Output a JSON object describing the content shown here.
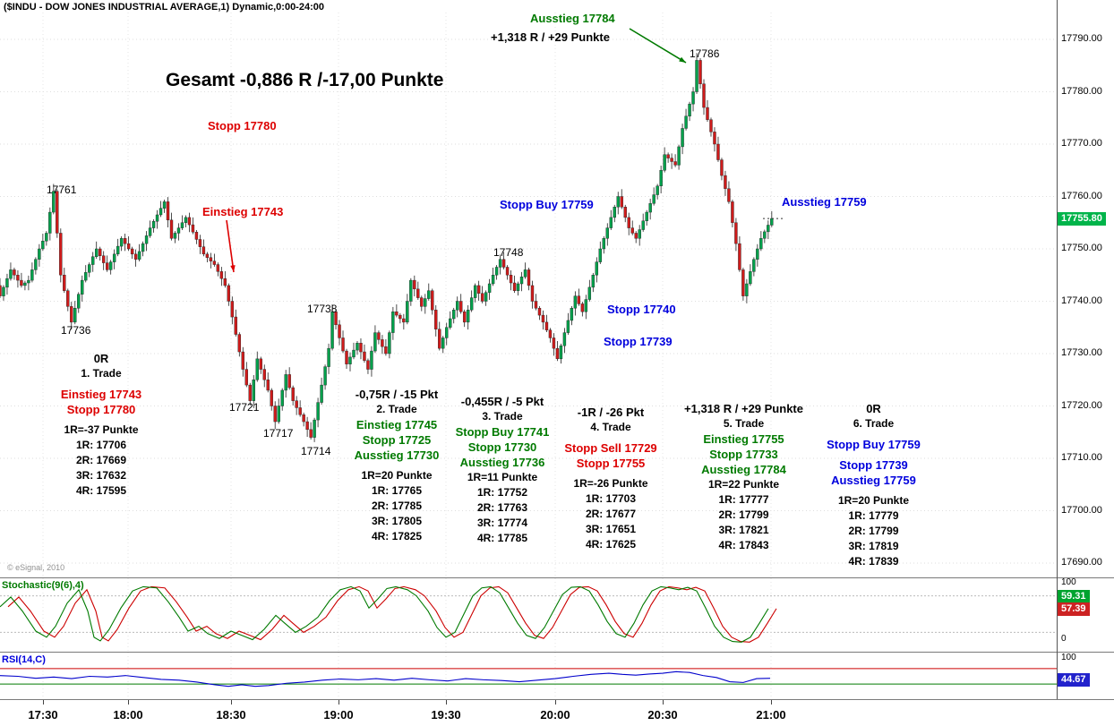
{
  "title_bar": {
    "symbol_title": "($INDU - DOW JONES INDUSTRIAL AVERAGE,1) Dynamic,0:00-24:00"
  },
  "colors": {
    "candle_up": "#00a14b",
    "candle_down": "#cf1b1b",
    "wick": "#222222",
    "price_badge_bg": "#00b44a",
    "stoch_k": "#007a00",
    "stoch_d": "#cc0000",
    "rsi_line": "#0000cc",
    "rsi_upper_band": "#cc0000",
    "rsi_lower_band": "#007a00",
    "annotation_red": "#dd0000",
    "annotation_green": "#007a00",
    "annotation_blue": "#0000dd"
  },
  "price_axis": {
    "labels": [
      "17790.00",
      "17780.00",
      "17770.00",
      "17760.00",
      "17750.00",
      "17740.00",
      "17730.00",
      "17720.00",
      "17710.00",
      "17700.00",
      "17690.00"
    ],
    "last_price_badge": "17755.80"
  },
  "annotations": {
    "gesamt": "Gesamt -0,886 R /-17,00 Punkte",
    "stopp_17780": "Stopp 17780",
    "einstieg_17743": "Einstieg 17743",
    "ausstieg_17784": "Ausstieg 17784",
    "plus_r": "+1,318 R / +29 Punkte",
    "peak_price": "17786",
    "stopp_buy_17759": "Stopp Buy 17759",
    "ausstieg_17759": "Ausstieg 17759",
    "stopp_17740": "Stopp 17740",
    "stopp_17739": "Stopp 17739",
    "copyright": "© eSignal, 2010",
    "swings": {
      "h17761": "17761",
      "l17736": "17736",
      "h17738": "17738",
      "h17748": "17748",
      "l17721": "17721",
      "l17717": "17717",
      "l17714": "17714"
    }
  },
  "trades": [
    {
      "result": "0R",
      "name": "1. Trade",
      "signals": [
        "Einstieg 17743",
        "Stopp 17780"
      ],
      "r_unit": "1R=-37 Punkte",
      "levels": [
        "1R: 17706",
        "2R: 17669",
        "3R: 17632",
        "4R: 17595"
      ]
    },
    {
      "result": "-0,75R / -15 Pkt",
      "name": "2. Trade",
      "signals": [
        "Einstieg 17745",
        "Stopp 17725",
        "Ausstieg 17730"
      ],
      "r_unit": "1R=20 Punkte",
      "levels": [
        "1R: 17765",
        "2R: 17785",
        "3R: 17805",
        "4R: 17825"
      ]
    },
    {
      "result": "-0,455R / -5 Pkt",
      "name": "3. Trade",
      "signals": [
        "Stopp Buy 17741",
        "Stopp 17730",
        "Ausstieg 17736"
      ],
      "r_unit": "1R=11 Punkte",
      "levels": [
        "1R: 17752",
        "2R: 17763",
        "3R: 17774",
        "4R: 17785"
      ]
    },
    {
      "result": "-1R / -26 Pkt",
      "name": "4. Trade",
      "signals": [
        "Stopp Sell 17729",
        "Stopp 17755"
      ],
      "r_unit": "1R=-26 Punkte",
      "levels": [
        "1R: 17703",
        "2R: 17677",
        "3R: 17651",
        "4R: 17625"
      ]
    },
    {
      "result": "+1,318 R / +29 Punkte",
      "name": "5. Trade",
      "signals": [
        "Einstieg 17755",
        "Stopp 17733",
        "Ausstieg 17784"
      ],
      "r_unit": "1R=22 Punkte",
      "levels": [
        "1R: 17777",
        "2R: 17799",
        "3R: 17821",
        "4R: 17843"
      ]
    },
    {
      "result": "0R",
      "name": "6. Trade",
      "signals": [
        "Stopp Buy 17759",
        "Stopp 17739",
        "Ausstieg 17759"
      ],
      "r_unit": "1R=20 Punkte",
      "levels": [
        "1R: 17779",
        "2R: 17799",
        "3R: 17819",
        "4R: 17839"
      ]
    }
  ],
  "chart_data": [
    {
      "type": "candlestick",
      "title": "$INDU Dow Jones Industrial Average, 1-minute",
      "x_axis": {
        "ticks": [
          "17:30",
          "18:00",
          "18:30",
          "19:00",
          "19:30",
          "20:00",
          "20:30",
          "21:00"
        ]
      },
      "y_axis": {
        "min": 17690,
        "max": 17790,
        "tick_step": 10
      },
      "last_price": 17755.8,
      "close_keypoints": [
        [
          0,
          17745
        ],
        [
          2,
          17741
        ],
        [
          5,
          17746
        ],
        [
          8,
          17743
        ],
        [
          10,
          17744
        ],
        [
          13,
          17750
        ],
        [
          15,
          17753
        ],
        [
          17,
          17761
        ],
        [
          19,
          17745
        ],
        [
          22,
          17736
        ],
        [
          25,
          17744
        ],
        [
          29,
          17750
        ],
        [
          32,
          17746
        ],
        [
          36,
          17752
        ],
        [
          40,
          17748
        ],
        [
          44,
          17754
        ],
        [
          48,
          17759
        ],
        [
          50,
          17752
        ],
        [
          54,
          17756
        ],
        [
          59,
          17749
        ],
        [
          62,
          17747
        ],
        [
          65,
          17743
        ],
        [
          67,
          17737
        ],
        [
          70,
          17727
        ],
        [
          72,
          17721
        ],
        [
          74,
          17729
        ],
        [
          77,
          17723
        ],
        [
          79,
          17717
        ],
        [
          82,
          17726
        ],
        [
          84,
          17721
        ],
        [
          87,
          17717
        ],
        [
          89,
          17714
        ],
        [
          92,
          17724
        ],
        [
          94,
          17731
        ],
        [
          95,
          17738
        ],
        [
          97,
          17733
        ],
        [
          99,
          17728
        ],
        [
          102,
          17732
        ],
        [
          105,
          17727
        ],
        [
          107,
          17734
        ],
        [
          110,
          17730
        ],
        [
          112,
          17738
        ],
        [
          115,
          17736
        ],
        [
          117,
          17744
        ],
        [
          120,
          17739
        ],
        [
          122,
          17742
        ],
        [
          125,
          17731
        ],
        [
          127,
          17735
        ],
        [
          130,
          17740
        ],
        [
          132,
          17736
        ],
        [
          135,
          17743
        ],
        [
          137,
          17740
        ],
        [
          140,
          17745
        ],
        [
          142,
          17748
        ],
        [
          146,
          17742
        ],
        [
          149,
          17746
        ],
        [
          151,
          17740
        ],
        [
          154,
          17736
        ],
        [
          156,
          17733
        ],
        [
          158,
          17729
        ],
        [
          160,
          17734
        ],
        [
          163,
          17741
        ],
        [
          165,
          17738
        ],
        [
          168,
          17745
        ],
        [
          170,
          17750
        ],
        [
          173,
          17756
        ],
        [
          175,
          17760
        ],
        [
          178,
          17754
        ],
        [
          180,
          17752
        ],
        [
          183,
          17757
        ],
        [
          186,
          17762
        ],
        [
          188,
          17768
        ],
        [
          191,
          17766
        ],
        [
          193,
          17773
        ],
        [
          196,
          17780
        ],
        [
          197,
          17786
        ],
        [
          199,
          17777
        ],
        [
          202,
          17770
        ],
        [
          204,
          17764
        ],
        [
          206,
          17759
        ],
        [
          208,
          17751
        ],
        [
          210,
          17741
        ],
        [
          213,
          17748
        ],
        [
          215,
          17752
        ],
        [
          218,
          17755.8
        ]
      ]
    },
    {
      "type": "line",
      "title": "Stochastic(9(6),4)",
      "range": [
        0,
        100
      ],
      "axis_labels": [
        "100",
        "0"
      ],
      "bands": {
        "upper": 80,
        "lower": 20
      },
      "series": [
        {
          "name": "%K",
          "color": "#007a00",
          "points": [
            [
              0,
              62
            ],
            [
              12,
              78
            ],
            [
              25,
              55
            ],
            [
              40,
              22
            ],
            [
              52,
              12
            ],
            [
              62,
              30
            ],
            [
              75,
              68
            ],
            [
              88,
              90
            ],
            [
              98,
              55
            ],
            [
              105,
              12
            ],
            [
              112,
              6
            ],
            [
              122,
              25
            ],
            [
              135,
              60
            ],
            [
              148,
              88
            ],
            [
              160,
              95
            ],
            [
              175,
              93
            ],
            [
              188,
              70
            ],
            [
              200,
              45
            ],
            [
              210,
              22
            ],
            [
              222,
              30
            ],
            [
              232,
              18
            ],
            [
              245,
              10
            ],
            [
              258,
              22
            ],
            [
              270,
              15
            ],
            [
              282,
              8
            ],
            [
              295,
              25
            ],
            [
              308,
              48
            ],
            [
              318,
              35
            ],
            [
              330,
              20
            ],
            [
              342,
              30
            ],
            [
              355,
              45
            ],
            [
              368,
              72
            ],
            [
              380,
              90
            ],
            [
              392,
              95
            ],
            [
              402,
              88
            ],
            [
              412,
              60
            ],
            [
              422,
              75
            ],
            [
              432,
              92
            ],
            [
              442,
              95
            ],
            [
              455,
              90
            ],
            [
              465,
              80
            ],
            [
              478,
              55
            ],
            [
              488,
              28
            ],
            [
              498,
              12
            ],
            [
              508,
              20
            ],
            [
              518,
              50
            ],
            [
              528,
              80
            ],
            [
              538,
              93
            ],
            [
              548,
              95
            ],
            [
              558,
              85
            ],
            [
              568,
              60
            ],
            [
              578,
              35
            ],
            [
              588,
              15
            ],
            [
              598,
              10
            ],
            [
              608,
              28
            ],
            [
              618,
              55
            ],
            [
              628,
              82
            ],
            [
              638,
              94
            ],
            [
              648,
              95
            ],
            [
              658,
              88
            ],
            [
              668,
              65
            ],
            [
              678,
              38
            ],
            [
              688,
              18
            ],
            [
              698,
              12
            ],
            [
              708,
              35
            ],
            [
              718,
              65
            ],
            [
              728,
              88
            ],
            [
              738,
              95
            ],
            [
              748,
              93
            ],
            [
              758,
              90
            ],
            [
              768,
              94
            ],
            [
              778,
              88
            ],
            [
              788,
              60
            ],
            [
              798,
              30
            ],
            [
              808,
              12
            ],
            [
              818,
              5
            ],
            [
              828,
              4
            ],
            [
              838,
              12
            ],
            [
              848,
              35
            ],
            [
              858,
              59
            ]
          ]
        },
        {
          "name": "%D",
          "color": "#cc0000",
          "derived": "lagged copy of %K"
        }
      ],
      "last_values": [
        "59.31",
        "57.39"
      ]
    },
    {
      "type": "line",
      "title": "RSI(14,C)",
      "range": [
        0,
        100
      ],
      "axis_labels": [
        "100"
      ],
      "bands": {
        "upper": 70,
        "lower": 30
      },
      "series": [
        {
          "name": "RSI",
          "color": "#0000cc",
          "points": [
            [
              0,
              52
            ],
            [
              20,
              50
            ],
            [
              40,
              45
            ],
            [
              60,
              48
            ],
            [
              80,
              44
            ],
            [
              100,
              50
            ],
            [
              120,
              48
            ],
            [
              140,
              52
            ],
            [
              160,
              47
            ],
            [
              180,
              42
            ],
            [
              200,
              40
            ],
            [
              220,
              35
            ],
            [
              240,
              28
            ],
            [
              255,
              24
            ],
            [
              270,
              28
            ],
            [
              285,
              24
            ],
            [
              300,
              26
            ],
            [
              320,
              32
            ],
            [
              340,
              35
            ],
            [
              360,
              40
            ],
            [
              380,
              43
            ],
            [
              400,
              41
            ],
            [
              420,
              44
            ],
            [
              440,
              40
            ],
            [
              460,
              45
            ],
            [
              480,
              41
            ],
            [
              500,
              38
            ],
            [
              520,
              44
            ],
            [
              540,
              41
            ],
            [
              560,
              39
            ],
            [
              580,
              36
            ],
            [
              600,
              40
            ],
            [
              620,
              44
            ],
            [
              640,
              50
            ],
            [
              660,
              55
            ],
            [
              680,
              58
            ],
            [
              695,
              55
            ],
            [
              710,
              53
            ],
            [
              725,
              56
            ],
            [
              740,
              58
            ],
            [
              755,
              62
            ],
            [
              770,
              60
            ],
            [
              785,
              52
            ],
            [
              800,
              47
            ],
            [
              815,
              36
            ],
            [
              830,
              34
            ],
            [
              845,
              44
            ],
            [
              860,
              45
            ]
          ]
        }
      ],
      "last_value": "44.67"
    }
  ]
}
